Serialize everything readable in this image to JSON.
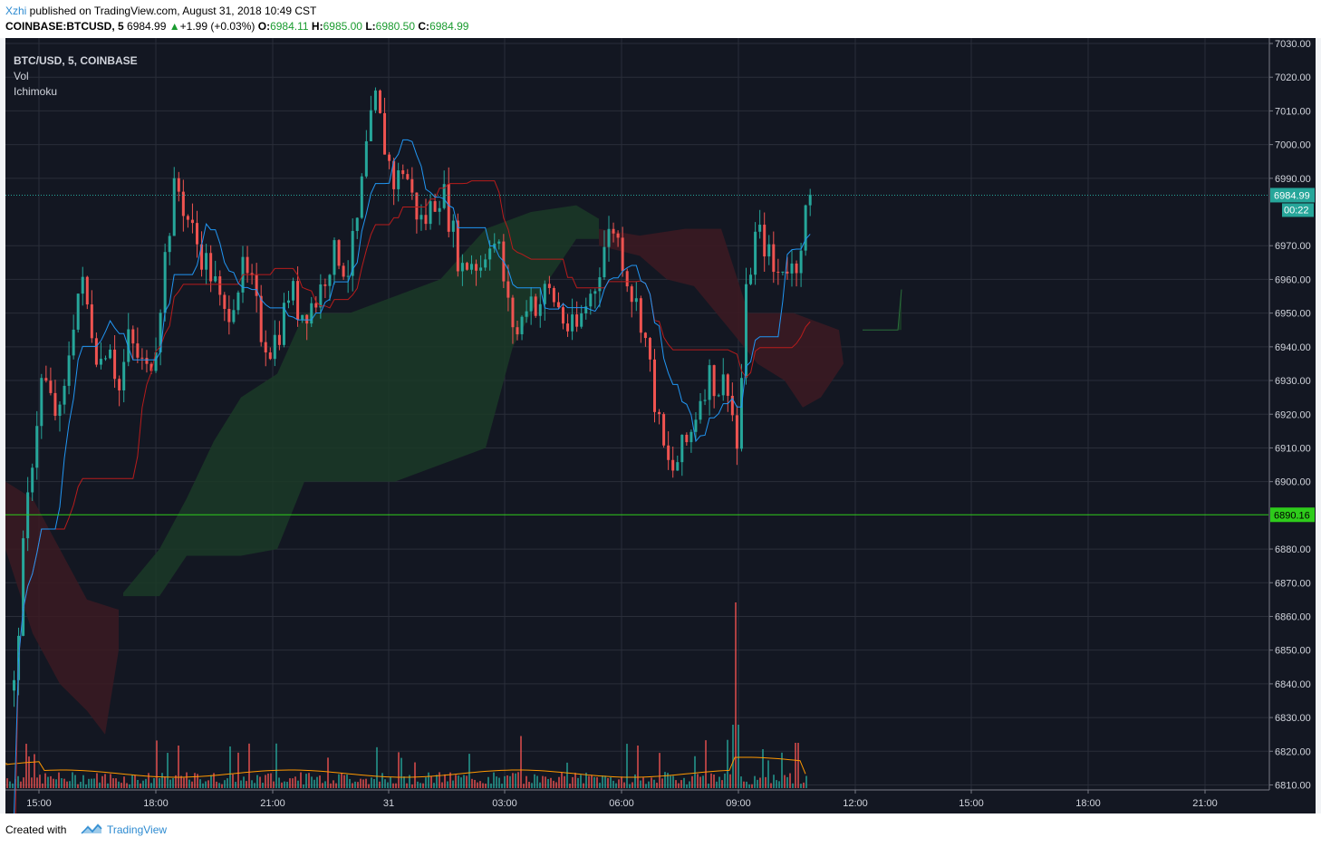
{
  "header": {
    "author": "Xzhi",
    "published_text": " published on TradingView.com, August 31, 2018 10:49 CST",
    "symbol": "COINBASE:BTCUSD, 5",
    "last": "6984.99",
    "change": "+1.99 (+0.03%)",
    "o_label": "O:",
    "o_value": "6984.11",
    "h_label": "H:",
    "h_value": "6985.00",
    "l_label": "L:",
    "l_value": "6980.50",
    "c_label": "C:",
    "c_value": "6984.99"
  },
  "legend": {
    "symbol": "BTC/USD, 5, COINBASE",
    "vol": "Vol",
    "ichimoku": "Ichimoku"
  },
  "footer": {
    "created_with": "Created with",
    "brand": "TradingView"
  },
  "colors": {
    "background": "#131722",
    "up": "#26a69a",
    "down": "#ef5350",
    "tenkan": "#2196f3",
    "kijun": "#b71c1c",
    "cloud_green": "#1b3a27",
    "cloud_red": "#3b1a22",
    "price_line": "#26a69a",
    "level_line": "#2ecc1b"
  },
  "chart_data": {
    "type": "candlestick",
    "symbol": "BTC/USD",
    "interval": "5",
    "exchange": "COINBASE",
    "price_axis": {
      "ticks": [
        7030,
        7020,
        7010,
        7000,
        6990,
        6970,
        6960,
        6950,
        6940,
        6930,
        6920,
        6910,
        6900,
        6880,
        6870,
        6860,
        6850,
        6840,
        6830,
        6820,
        6810
      ],
      "range": [
        6807,
        7031
      ]
    },
    "time_axis": {
      "ticks": [
        "15:00",
        "18:00",
        "21:00",
        "31",
        "03:00",
        "06:00",
        "09:00",
        "12:00",
        "15:00",
        "18:00",
        "21:00"
      ]
    },
    "last_price": "6984.99",
    "countdown": "00:22",
    "horizontal_level": "6890.16",
    "price_path": [
      [
        0,
        6838
      ],
      [
        1,
        6880
      ],
      [
        2,
        6910
      ],
      [
        3,
        6932
      ],
      [
        4,
        6922
      ],
      [
        5,
        6918
      ],
      [
        6,
        6945
      ],
      [
        7,
        6960
      ],
      [
        8,
        6948
      ],
      [
        9,
        6935
      ],
      [
        10,
        6944
      ],
      [
        11,
        6926
      ],
      [
        12,
        6942
      ],
      [
        13,
        6937
      ],
      [
        14,
        6932
      ],
      [
        15,
        6944
      ],
      [
        16,
        6970
      ],
      [
        17,
        6989
      ],
      [
        18,
        6980
      ],
      [
        19,
        6972
      ],
      [
        20,
        6966
      ],
      [
        21,
        6960
      ],
      [
        22,
        6948
      ],
      [
        23,
        6955
      ],
      [
        24,
        6962
      ],
      [
        25,
        6957
      ],
      [
        26,
        6944
      ],
      [
        27,
        6940
      ],
      [
        28,
        6946
      ],
      [
        29,
        6958
      ],
      [
        30,
        6950
      ],
      [
        31,
        6952
      ],
      [
        32,
        6955
      ],
      [
        33,
        6965
      ],
      [
        34,
        6968
      ],
      [
        35,
        6962
      ],
      [
        36,
        6975
      ],
      [
        37,
        6998
      ],
      [
        38,
        7013
      ],
      [
        39,
        6999
      ],
      [
        40,
        6988
      ],
      [
        41,
        6994
      ],
      [
        42,
        6982
      ],
      [
        43,
        6976
      ],
      [
        44,
        6983
      ],
      [
        45,
        6987
      ],
      [
        46,
        6975
      ],
      [
        47,
        6963
      ],
      [
        48,
        6966
      ],
      [
        49,
        6964
      ],
      [
        50,
        6973
      ],
      [
        51,
        6968
      ],
      [
        52,
        6950
      ],
      [
        53,
        6943
      ],
      [
        54,
        6956
      ],
      [
        55,
        6952
      ],
      [
        56,
        6957
      ],
      [
        57,
        6953
      ],
      [
        58,
        6946
      ],
      [
        59,
        6944
      ],
      [
        60,
        6952
      ],
      [
        61,
        6958
      ],
      [
        62,
        6970
      ],
      [
        63,
        6976
      ],
      [
        64,
        6966
      ],
      [
        65,
        6955
      ],
      [
        66,
        6948
      ],
      [
        67,
        6930
      ],
      [
        68,
        6912
      ],
      [
        69,
        6902
      ],
      [
        70,
        6908
      ],
      [
        71,
        6913
      ],
      [
        72,
        6925
      ],
      [
        73,
        6932
      ],
      [
        74,
        6928
      ],
      [
        75,
        6930
      ],
      [
        76,
        6909
      ],
      [
        77,
        6958
      ],
      [
        78,
        6974
      ],
      [
        79,
        6970
      ],
      [
        80,
        6960
      ],
      [
        81,
        6966
      ],
      [
        82,
        6962
      ],
      [
        83,
        6978
      ],
      [
        84,
        6985
      ]
    ],
    "volume_ma_note": "",
    "indicators": [
      "Vol",
      "Ichimoku"
    ]
  }
}
